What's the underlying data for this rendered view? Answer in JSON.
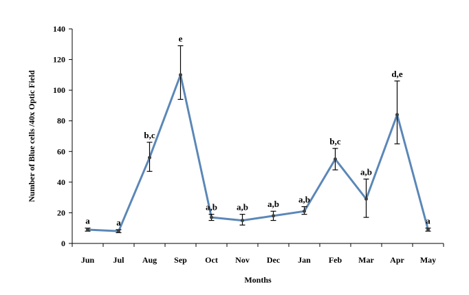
{
  "chart_data": {
    "type": "line",
    "xlabel": "Months",
    "ylabel": "Number of Blue cells /40x Optic Field",
    "ylim": [
      0,
      140
    ],
    "yticks": [
      0,
      20,
      40,
      60,
      80,
      100,
      120,
      140
    ],
    "categories": [
      "Jun",
      "Jul",
      "Aug",
      "Sep",
      "Oct",
      "Nov",
      "Dec",
      "Jan",
      "Feb",
      "Mar",
      "Apr",
      "May"
    ],
    "series": [
      {
        "values": [
          9,
          8,
          56,
          110,
          17,
          15,
          18,
          21,
          55,
          29,
          84,
          9
        ],
        "error_high": [
          1,
          1,
          10,
          19,
          2,
          4,
          3,
          3,
          7,
          13,
          22,
          1
        ],
        "error_low": [
          1,
          1,
          9,
          16,
          2,
          3,
          3,
          2,
          7,
          12,
          19,
          1
        ],
        "color": "#5b87b7"
      }
    ],
    "annotations": [
      "a",
      "a",
      "b,c",
      "e",
      "a,b",
      "a,b",
      "a,b",
      "a,b",
      "b,c",
      "a,b",
      "d,e",
      "a"
    ],
    "grid": false,
    "legend": "none"
  }
}
